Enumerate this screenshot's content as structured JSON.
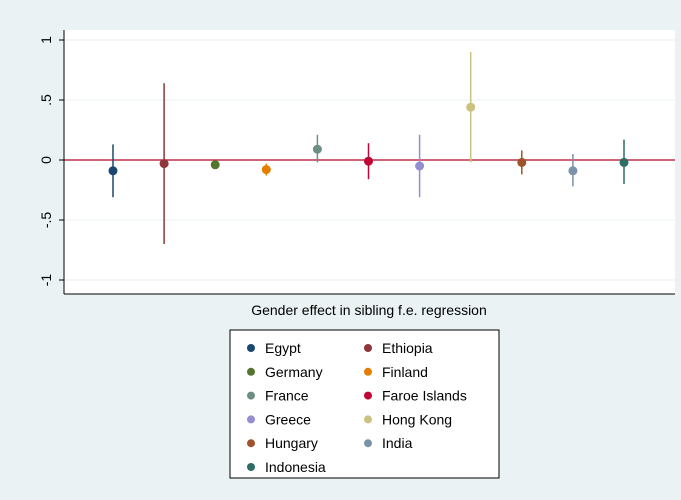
{
  "chart_data": {
    "type": "scatter",
    "xlabel": "Gender effect in sibling f.e. regression",
    "ylabel": "",
    "ylim": [
      -1,
      1
    ],
    "yticks": [
      {
        "value": 1,
        "label": "1"
      },
      {
        "value": 0.5,
        "label": ".5"
      },
      {
        "value": 0,
        "label": "0"
      },
      {
        "value": -0.5,
        "label": "-.5"
      },
      {
        "value": -1,
        "label": "-1"
      }
    ],
    "grid": true,
    "reference_line": {
      "y": 0,
      "color": "#c0304a"
    },
    "legend_position": "bottom",
    "series": [
      {
        "name": "Egypt",
        "estimate": -0.09,
        "ci_low": -0.31,
        "ci_high": 0.13,
        "color": "#1a476f"
      },
      {
        "name": "Ethiopia",
        "estimate": -0.03,
        "ci_low": -0.7,
        "ci_high": 0.64,
        "color": "#90353b"
      },
      {
        "name": "Germany",
        "estimate": -0.04,
        "ci_low": -0.05,
        "ci_high": -0.03,
        "color": "#55752f"
      },
      {
        "name": "Finland",
        "estimate": -0.08,
        "ci_low": -0.13,
        "ci_high": -0.03,
        "color": "#e37e00"
      },
      {
        "name": "France",
        "estimate": 0.09,
        "ci_low": -0.02,
        "ci_high": 0.21,
        "color": "#6e8e84"
      },
      {
        "name": "Faroe Islands",
        "estimate": -0.01,
        "ci_low": -0.16,
        "ci_high": 0.14,
        "color": "#c10534"
      },
      {
        "name": "Greece",
        "estimate": -0.05,
        "ci_low": -0.31,
        "ci_high": 0.21,
        "color": "#938dd2"
      },
      {
        "name": "Hong Kong",
        "estimate": 0.44,
        "ci_low": -0.02,
        "ci_high": 0.9,
        "color": "#cac27e"
      },
      {
        "name": "Hungary",
        "estimate": -0.02,
        "ci_low": -0.12,
        "ci_high": 0.08,
        "color": "#a0522d"
      },
      {
        "name": "India",
        "estimate": -0.09,
        "ci_low": -0.22,
        "ci_high": 0.05,
        "color": "#7b92a8"
      },
      {
        "name": "Indonesia",
        "estimate": -0.02,
        "ci_low": -0.2,
        "ci_high": 0.17,
        "color": "#2d6d66"
      }
    ]
  }
}
